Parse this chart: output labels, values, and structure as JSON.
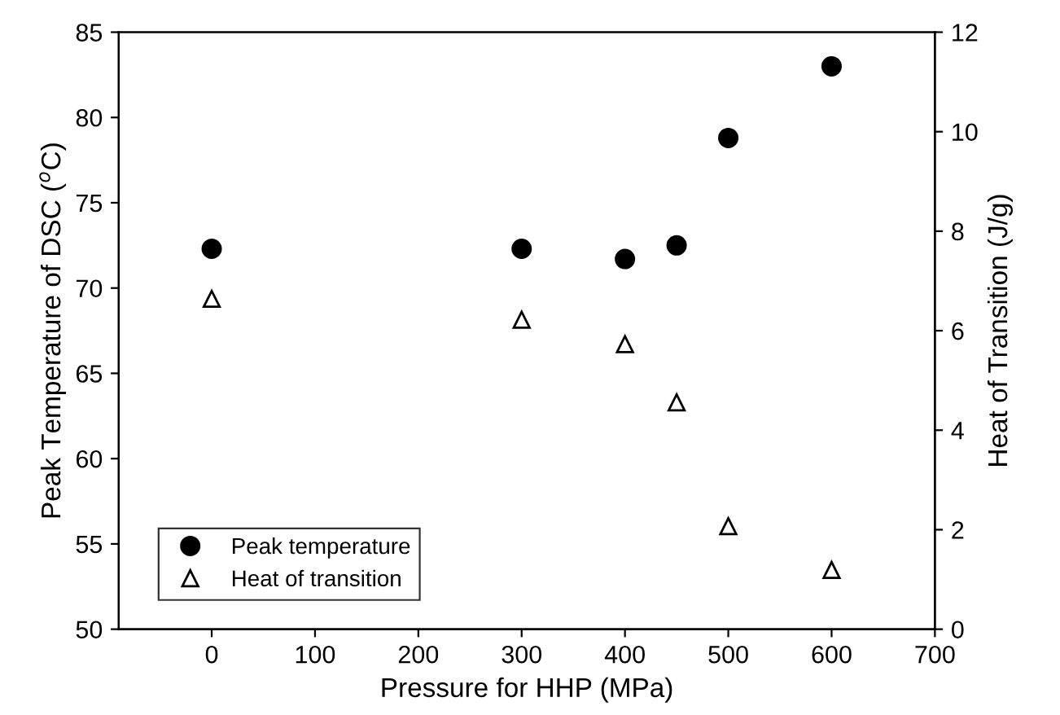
{
  "chart_data": {
    "type": "scatter",
    "xlabel": "Pressure for HHP (MPa)",
    "ylabel": "Peak Temperature of DSC ($^{o}$C)",
    "y2label": "Heat of Transition (J/g)",
    "x": [
      0,
      300,
      400,
      450,
      500,
      600
    ],
    "series": [
      {
        "name": "Peak temperature",
        "color": "#000000",
        "marker": "circle",
        "values": [
          72.3,
          72.3,
          71.7,
          72.5,
          78.8,
          83.0
        ]
      },
      {
        "name": "Heat of transition",
        "color": "#000000",
        "marker": "triangle",
        "axis": "y2",
        "values": [
          6.64,
          6.22,
          5.73,
          4.56,
          2.07,
          1.19
        ]
      }
    ],
    "xlim": [
      -90,
      700
    ],
    "xticks": [
      0,
      100,
      200,
      300,
      400,
      500,
      600,
      700
    ],
    "ylim": [
      50,
      85
    ],
    "yticks": [
      50,
      55,
      60,
      65,
      70,
      75,
      80,
      85
    ],
    "y2lim": [
      0,
      12
    ],
    "y2ticks": [
      0,
      2,
      4,
      6,
      8,
      10,
      12
    ],
    "grid": false,
    "legend": "bottom left"
  }
}
